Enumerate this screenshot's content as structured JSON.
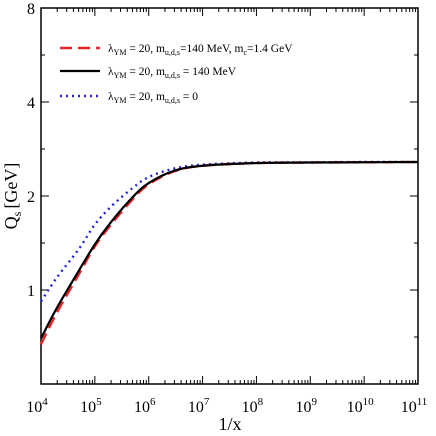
{
  "chart_data": {
    "type": "line",
    "xlabel": "1/x",
    "ylabel": "Q",
    "ylabel_sub": "s",
    "ylabel_unit": "[GeV]",
    "xscale": "log",
    "yscale": "log",
    "xlim": [
      10000,
      100000000000
    ],
    "ylim": [
      0.5,
      8
    ],
    "x_ticks": [
      {
        "base": "10",
        "exp": "4",
        "value": 10000
      },
      {
        "base": "10",
        "exp": "5",
        "value": 100000
      },
      {
        "base": "10",
        "exp": "6",
        "value": 1000000
      },
      {
        "base": "10",
        "exp": "7",
        "value": 10000000
      },
      {
        "base": "10",
        "exp": "8",
        "value": 100000000
      },
      {
        "base": "10",
        "exp": "9",
        "value": 1000000000
      },
      {
        "base": "10",
        "exp": "10",
        "value": 10000000000
      },
      {
        "base": "10",
        "exp": "11",
        "value": 100000000000
      }
    ],
    "y_ticks": [
      {
        "label": "1",
        "value": 1
      },
      {
        "label": "2",
        "value": 2
      },
      {
        "label": "4",
        "value": 4
      },
      {
        "label": "8",
        "value": 8
      }
    ],
    "legend_position": "top-left",
    "series": [
      {
        "name_parts": [
          {
            "t": "λ"
          },
          {
            "t": "YM",
            "sub": true
          },
          {
            "t": " = 20, m"
          },
          {
            "t": "u,d,s",
            "sub": true
          },
          {
            "t": "=140 MeV, m"
          },
          {
            "t": "c",
            "sub": true
          },
          {
            "t": "=1.4 GeV"
          }
        ],
        "color": "#e8242a",
        "dash": "dashed",
        "x": [
          10000,
          20000,
          50000,
          100000,
          200000,
          500000,
          1000000,
          3000000,
          10000000,
          100000000,
          1000000000,
          10000000000,
          100000000000
        ],
        "y": [
          0.67,
          0.85,
          1.12,
          1.38,
          1.62,
          1.95,
          2.18,
          2.4,
          2.5,
          2.55,
          2.56,
          2.565,
          2.57
        ]
      },
      {
        "name_parts": [
          {
            "t": "λ"
          },
          {
            "t": "YM",
            "sub": true
          },
          {
            "t": " = 20, m"
          },
          {
            "t": "u,d,s",
            "sub": true
          },
          {
            "t": " = 140 MeV"
          }
        ],
        "color": "#000000",
        "dash": "solid",
        "x": [
          10000,
          20000,
          50000,
          100000,
          200000,
          500000,
          1000000,
          3000000,
          10000000,
          100000000,
          1000000000,
          10000000000,
          100000000000
        ],
        "y": [
          0.7,
          0.88,
          1.15,
          1.4,
          1.65,
          1.98,
          2.2,
          2.41,
          2.5,
          2.55,
          2.56,
          2.565,
          2.57
        ]
      },
      {
        "name_parts": [
          {
            "t": "λ"
          },
          {
            "t": "YM",
            "sub": true
          },
          {
            "t": " = 20, m"
          },
          {
            "t": "u,d,s",
            "sub": true
          },
          {
            "t": " = 0"
          }
        ],
        "color": "#2222dd",
        "dash": "dotted",
        "x": [
          10000,
          20000,
          50000,
          100000,
          200000,
          500000,
          1000000,
          3000000,
          10000000,
          100000000,
          1000000000,
          10000000000,
          100000000000
        ],
        "y": [
          0.92,
          1.1,
          1.35,
          1.62,
          1.85,
          2.12,
          2.3,
          2.45,
          2.52,
          2.56,
          2.565,
          2.57,
          2.57
        ]
      }
    ]
  }
}
